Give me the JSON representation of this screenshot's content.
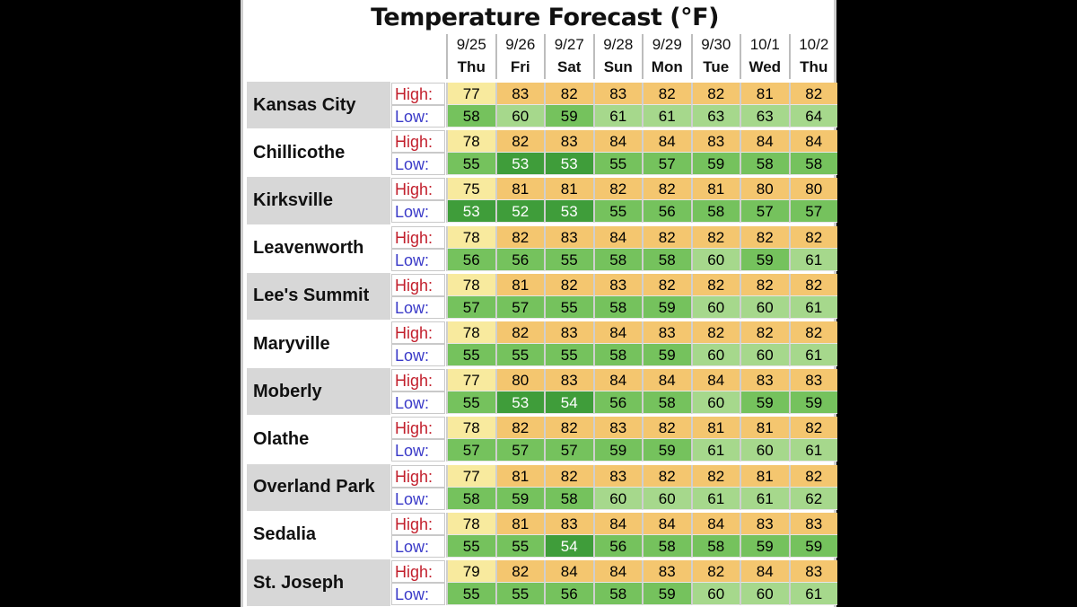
{
  "title": "Temperature Forecast (°F)",
  "labels": {
    "high": "High:",
    "low": "Low:"
  },
  "colors": {
    "high_light": "#f8ea9e",
    "high_warm": "#f4c66f",
    "low_light": "#a6d88c",
    "low_mid": "#75c25d",
    "low_dark": "#3f9d3a"
  },
  "chart_data": {
    "type": "table",
    "title": "Temperature Forecast (°F)",
    "columns": [
      {
        "date": "9/25",
        "day": "Thu"
      },
      {
        "date": "9/26",
        "day": "Fri"
      },
      {
        "date": "9/27",
        "day": "Sat"
      },
      {
        "date": "9/28",
        "day": "Sun"
      },
      {
        "date": "9/29",
        "day": "Mon"
      },
      {
        "date": "9/30",
        "day": "Tue"
      },
      {
        "date": "10/1",
        "day": "Wed"
      },
      {
        "date": "10/2",
        "day": "Thu"
      }
    ],
    "rows": [
      {
        "city": "Kansas City",
        "high": [
          77,
          83,
          82,
          83,
          82,
          82,
          81,
          82
        ],
        "low": [
          58,
          60,
          59,
          61,
          61,
          63,
          63,
          64
        ]
      },
      {
        "city": "Chillicothe",
        "high": [
          78,
          82,
          83,
          84,
          84,
          83,
          84,
          84
        ],
        "low": [
          55,
          53,
          53,
          55,
          57,
          59,
          58,
          58
        ]
      },
      {
        "city": "Kirksville",
        "high": [
          75,
          81,
          81,
          82,
          82,
          81,
          80,
          80
        ],
        "low": [
          53,
          52,
          53,
          55,
          56,
          58,
          57,
          57
        ]
      },
      {
        "city": "Leavenworth",
        "high": [
          78,
          82,
          83,
          84,
          82,
          82,
          82,
          82
        ],
        "low": [
          56,
          56,
          55,
          58,
          58,
          60,
          59,
          61
        ]
      },
      {
        "city": "Lee's Summit",
        "high": [
          78,
          81,
          82,
          83,
          82,
          82,
          82,
          82
        ],
        "low": [
          57,
          57,
          55,
          58,
          59,
          60,
          60,
          61
        ]
      },
      {
        "city": "Maryville",
        "high": [
          78,
          82,
          83,
          84,
          83,
          82,
          82,
          82
        ],
        "low": [
          55,
          55,
          55,
          58,
          59,
          60,
          60,
          61
        ]
      },
      {
        "city": "Moberly",
        "high": [
          77,
          80,
          83,
          84,
          84,
          84,
          83,
          83
        ],
        "low": [
          55,
          53,
          54,
          56,
          58,
          60,
          59,
          59
        ]
      },
      {
        "city": "Olathe",
        "high": [
          78,
          82,
          82,
          83,
          82,
          81,
          81,
          82
        ],
        "low": [
          57,
          57,
          57,
          59,
          59,
          61,
          60,
          61
        ]
      },
      {
        "city": "Overland Park",
        "high": [
          77,
          81,
          82,
          83,
          82,
          82,
          81,
          82
        ],
        "low": [
          58,
          59,
          58,
          60,
          60,
          61,
          61,
          62
        ]
      },
      {
        "city": "Sedalia",
        "high": [
          78,
          81,
          83,
          84,
          84,
          84,
          83,
          83
        ],
        "low": [
          55,
          55,
          54,
          56,
          58,
          58,
          59,
          59
        ]
      },
      {
        "city": "St. Joseph",
        "high": [
          79,
          82,
          84,
          84,
          83,
          82,
          84,
          83
        ],
        "low": [
          55,
          55,
          56,
          58,
          59,
          60,
          60,
          61
        ]
      }
    ]
  }
}
